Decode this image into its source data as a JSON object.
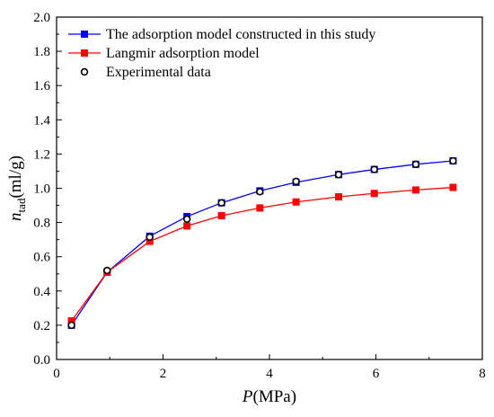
{
  "chart_data": {
    "type": "line",
    "xlabel": {
      "main": "P",
      "unit": "(MPa)"
    },
    "ylabel": {
      "main": "n",
      "sub": "tad",
      "unit": "(ml/g)"
    },
    "xlim": [
      0,
      8
    ],
    "ylim": [
      0,
      2.0
    ],
    "xticks": [
      "0",
      "2",
      "4",
      "6",
      "8"
    ],
    "yticks": [
      "0.0",
      "0.2",
      "0.4",
      "0.6",
      "0.8",
      "1.0",
      "1.2",
      "1.4",
      "1.6",
      "1.8",
      "2.0"
    ],
    "grid": false,
    "legend_position": "top-left",
    "series": [
      {
        "name": "The adsorption model constructed in this study",
        "color": "#0000ff",
        "marker": "filled-square",
        "x": [
          0.28,
          0.95,
          1.75,
          2.45,
          3.1,
          3.82,
          4.5,
          5.3,
          5.97,
          6.75,
          7.45
        ],
        "y": [
          0.2,
          0.51,
          0.72,
          0.835,
          0.915,
          0.985,
          1.035,
          1.08,
          1.11,
          1.14,
          1.16
        ]
      },
      {
        "name": "Langmir adsorption model",
        "color": "#ff0000",
        "marker": "filled-square",
        "x": [
          0.28,
          0.95,
          1.75,
          2.45,
          3.1,
          3.82,
          4.5,
          5.3,
          5.97,
          6.75,
          7.45
        ],
        "y": [
          0.225,
          0.51,
          0.69,
          0.78,
          0.84,
          0.885,
          0.92,
          0.95,
          0.97,
          0.99,
          1.005
        ]
      },
      {
        "name": "Experimental data",
        "color": "#000000",
        "marker": "open-circle",
        "x": [
          0.28,
          0.95,
          1.75,
          2.45,
          3.1,
          3.82,
          4.5,
          5.3,
          5.97,
          6.75,
          7.45
        ],
        "y": [
          0.2,
          0.52,
          0.715,
          0.82,
          0.915,
          0.98,
          1.04,
          1.08,
          1.11,
          1.14,
          1.16
        ]
      }
    ]
  }
}
